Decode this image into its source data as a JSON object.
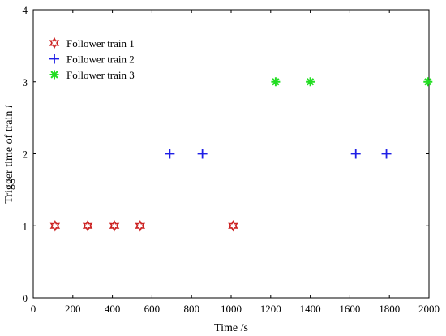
{
  "chart_data": {
    "type": "scatter",
    "xlabel": "Time /s",
    "ylabel": "Trigger time of train i",
    "xlim": [
      0,
      2000
    ],
    "ylim": [
      0,
      4
    ],
    "xticks": [
      "0",
      "200",
      "400",
      "600",
      "800",
      "1000",
      "1200",
      "1400",
      "1600",
      "1800",
      "2000"
    ],
    "yticks": [
      "0",
      "1",
      "2",
      "3",
      "4"
    ],
    "grid": false,
    "legend_position": "top-left",
    "series": [
      {
        "name": "Follower train 1",
        "marker": "hexagram",
        "color": "#cc2222",
        "points": [
          [
            110,
            1
          ],
          [
            275,
            1
          ],
          [
            410,
            1
          ],
          [
            540,
            1
          ],
          [
            1010,
            1
          ]
        ]
      },
      {
        "name": "Follower train 2",
        "marker": "plus",
        "color": "#1f1fe6",
        "points": [
          [
            690,
            2
          ],
          [
            855,
            2
          ],
          [
            1630,
            2
          ],
          [
            1785,
            2
          ]
        ]
      },
      {
        "name": "Follower train 3",
        "marker": "asterisk",
        "color": "#22dd22",
        "points": [
          [
            1225,
            3
          ],
          [
            1400,
            3
          ],
          [
            1995,
            3
          ]
        ]
      }
    ]
  }
}
